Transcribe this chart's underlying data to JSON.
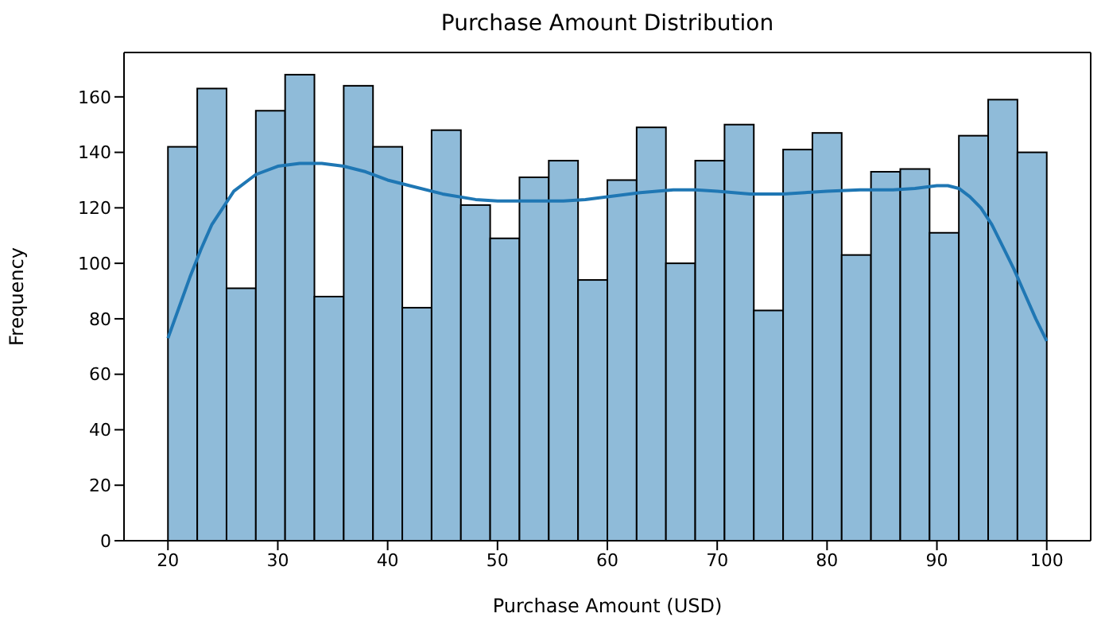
{
  "chart_data": {
    "type": "histogram",
    "title": "Purchase Amount Distribution",
    "xlabel": "Purchase Amount (USD)",
    "ylabel": "Frequency",
    "bins": [
      20,
      22.667,
      25.333,
      28,
      30.667,
      33.333,
      36,
      38.667,
      41.333,
      44,
      46.667,
      49.333,
      52,
      54.667,
      57.333,
      60,
      62.667,
      65.333,
      68,
      70.667,
      73.333,
      76,
      78.667,
      81.333,
      84,
      86.667,
      89.333,
      92,
      94.667,
      97.333,
      100
    ],
    "series": [
      {
        "color": "#8fbbd9",
        "values": [
          142,
          163,
          91,
          155,
          168,
          88,
          164,
          142,
          84,
          148,
          121,
          109,
          131,
          137,
          94,
          130,
          149,
          100,
          137,
          150,
          83,
          141,
          147,
          103,
          133,
          134,
          111,
          146,
          159,
          140
        ]
      },
      {
        "type": "line",
        "color": "#1f77b4",
        "x": [
          20,
          21,
          22,
          23,
          24,
          25,
          26,
          28,
          30,
          32,
          34,
          36,
          38,
          40,
          42,
          45,
          48,
          50,
          53,
          56,
          58,
          60,
          63,
          66,
          68,
          70,
          73,
          76,
          78,
          80,
          83,
          86,
          88,
          90,
          91,
          92,
          93,
          94,
          95,
          96,
          97,
          98,
          99,
          100
        ],
        "values": [
          73,
          84,
          95,
          105,
          114,
          120,
          126,
          132,
          135,
          136,
          136,
          135,
          133,
          130,
          128,
          125,
          123,
          122.5,
          122.5,
          122.5,
          123,
          124,
          125.5,
          126.5,
          126.5,
          126,
          125,
          125,
          125.5,
          126,
          126.5,
          126.5,
          127,
          128,
          128,
          127,
          124,
          120,
          114,
          106,
          98,
          89,
          80,
          72
        ]
      }
    ],
    "xlim": [
      16,
      104
    ],
    "ylim": [
      0,
      176
    ],
    "xticks": [
      20,
      30,
      40,
      50,
      60,
      70,
      80,
      90,
      100
    ],
    "yticks": [
      0,
      20,
      40,
      60,
      80,
      100,
      120,
      140,
      160
    ],
    "grid": false,
    "legend": false,
    "marker": "none",
    "line_style": "solid"
  }
}
